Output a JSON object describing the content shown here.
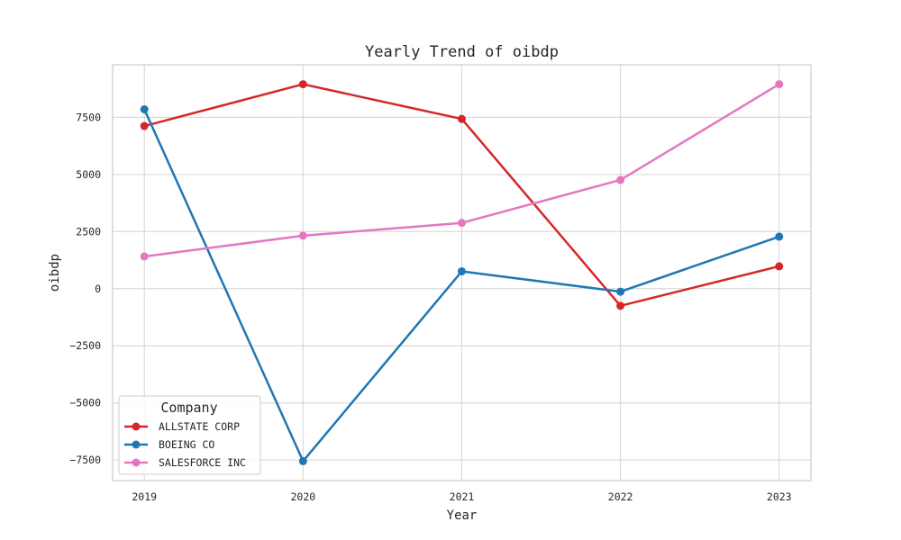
{
  "chart_data": {
    "type": "line",
    "title": "Yearly Trend of oibdp",
    "xlabel": "Year",
    "ylabel": "oibdp",
    "x": [
      2019,
      2020,
      2021,
      2022,
      2023
    ],
    "xlim": [
      2018.8,
      2023.2
    ],
    "ylim": [
      -8400,
      9800
    ],
    "yticks": [
      -7500,
      -5000,
      -2500,
      0,
      2500,
      5000,
      7500
    ],
    "grid": true,
    "legend": {
      "title": "Company",
      "position": "lower-left"
    },
    "series": [
      {
        "name": "ALLSTATE CORP",
        "color": "#d62728",
        "values": [
          7120,
          8950,
          7430,
          -750,
          980
        ]
      },
      {
        "name": "BOEING CO",
        "color": "#1f77b4",
        "values": [
          7850,
          -7550,
          760,
          -130,
          2280
        ]
      },
      {
        "name": "SALESFORCE INC",
        "color": "#e377c2",
        "values": [
          1410,
          2320,
          2880,
          4760,
          8950
        ]
      }
    ]
  }
}
